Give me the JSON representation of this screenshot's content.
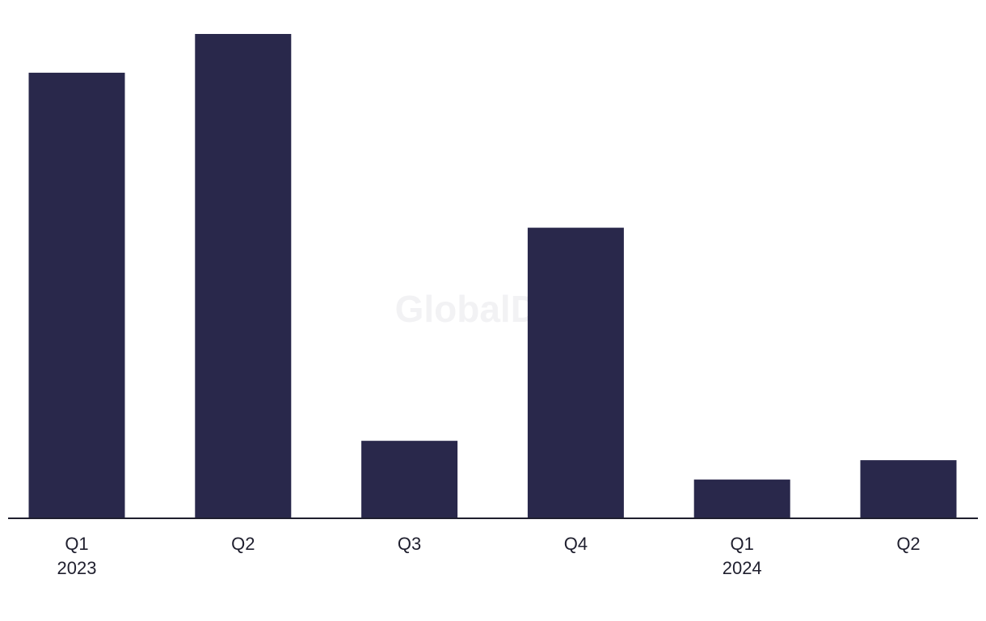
{
  "chart_data": {
    "type": "bar",
    "watermark": "GlobalData",
    "categories": [
      "Q1",
      "Q2",
      "Q3",
      "Q4",
      "Q1",
      "Q2"
    ],
    "years": [
      "2023",
      null,
      null,
      null,
      "2024",
      null
    ],
    "values": [
      23,
      25,
      4,
      15,
      2,
      3
    ],
    "color": "#29284b"
  }
}
